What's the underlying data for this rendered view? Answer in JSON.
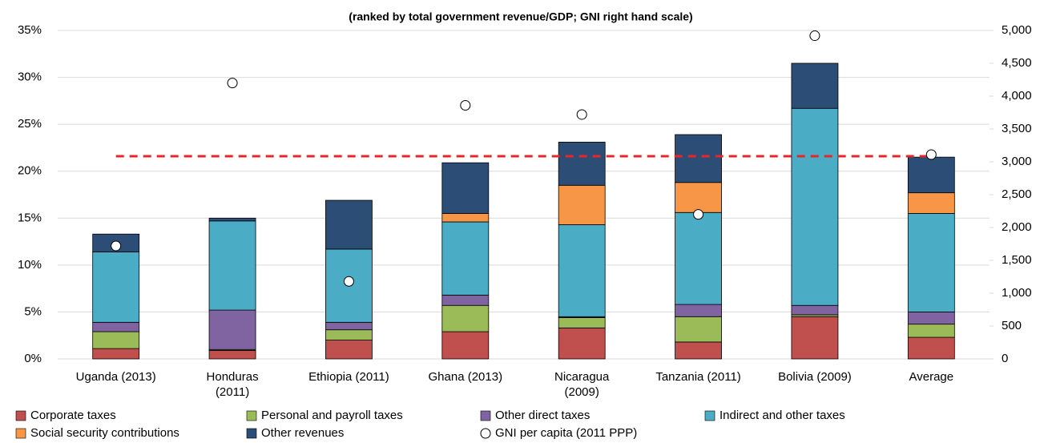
{
  "chart_data": {
    "type": "stacked_bar",
    "title": "(ranked by total government revenue/GDP; GNI right hand scale)",
    "categories": [
      "Uganda (2013)",
      "Honduras\n(2011)",
      "Ethiopia (2011)",
      "Ghana (2013)",
      "Nicaragua\n(2009)",
      "Tanzania (2011)",
      "Bolivia (2009)",
      "Average"
    ],
    "series": [
      {
        "name": "Corporate taxes",
        "color": "#c0504d",
        "values": [
          1.1,
          0.9,
          2.0,
          2.9,
          3.3,
          1.8,
          4.5,
          2.3
        ]
      },
      {
        "name": "Personal and payroll taxes",
        "color": "#9bbb59",
        "values": [
          1.8,
          0.1,
          1.1,
          2.8,
          1.1,
          2.7,
          0.2,
          1.4
        ]
      },
      {
        "name": "Other direct taxes",
        "color": "#8064a2",
        "values": [
          1.0,
          4.2,
          0.8,
          1.1,
          0.1,
          1.3,
          1.0,
          1.3
        ]
      },
      {
        "name": "Indirect and other taxes",
        "color": "#4bacc6",
        "values": [
          7.5,
          9.5,
          7.8,
          7.8,
          9.8,
          9.8,
          21.0,
          10.5
        ]
      },
      {
        "name": "Social security contributions",
        "color": "#f79646",
        "values": [
          0,
          0,
          0,
          0.9,
          4.2,
          3.2,
          0,
          2.2
        ]
      },
      {
        "name": "Other revenues",
        "color": "#2c4d75",
        "values": [
          1.9,
          0.3,
          5.2,
          5.4,
          4.6,
          5.1,
          4.8,
          3.8
        ]
      },
      {
        "name": "GNI per capita (2011 PPP)",
        "type": "scatter",
        "axis": "y2",
        "color": "#ffffff",
        "values": [
          1720,
          4200,
          1180,
          3860,
          3720,
          2200,
          4920,
          3110
        ]
      }
    ],
    "reference_line": {
      "value": 21.6,
      "color": "#e8262a",
      "dashed": true
    },
    "ylim": [
      0,
      35
    ],
    "yticks": [
      {
        "value": 0,
        "label": "0%"
      },
      {
        "value": 5,
        "label": "5%"
      },
      {
        "value": 10,
        "label": "10%"
      },
      {
        "value": 15,
        "label": "15%"
      },
      {
        "value": 20,
        "label": "20%"
      },
      {
        "value": 25,
        "label": "25%"
      },
      {
        "value": 30,
        "label": "30%"
      },
      {
        "value": 35,
        "label": "35%"
      }
    ],
    "y2lim": [
      0,
      5000
    ],
    "y2ticks": [
      0,
      500,
      {
        "value": 1000,
        "label": "1,000"
      },
      {
        "value": 1500,
        "label": "1,500"
      },
      {
        "value": 2000,
        "label": "2,000"
      },
      {
        "value": 2500,
        "label": "2,500"
      },
      {
        "value": 3000,
        "label": "3,000"
      },
      {
        "value": 3500,
        "label": "3,500"
      },
      {
        "value": 4000,
        "label": "4,000"
      },
      {
        "value": 4500,
        "label": "4,500"
      },
      {
        "value": 5000,
        "label": "5,000"
      }
    ],
    "grid": true,
    "legend": "bottom"
  }
}
